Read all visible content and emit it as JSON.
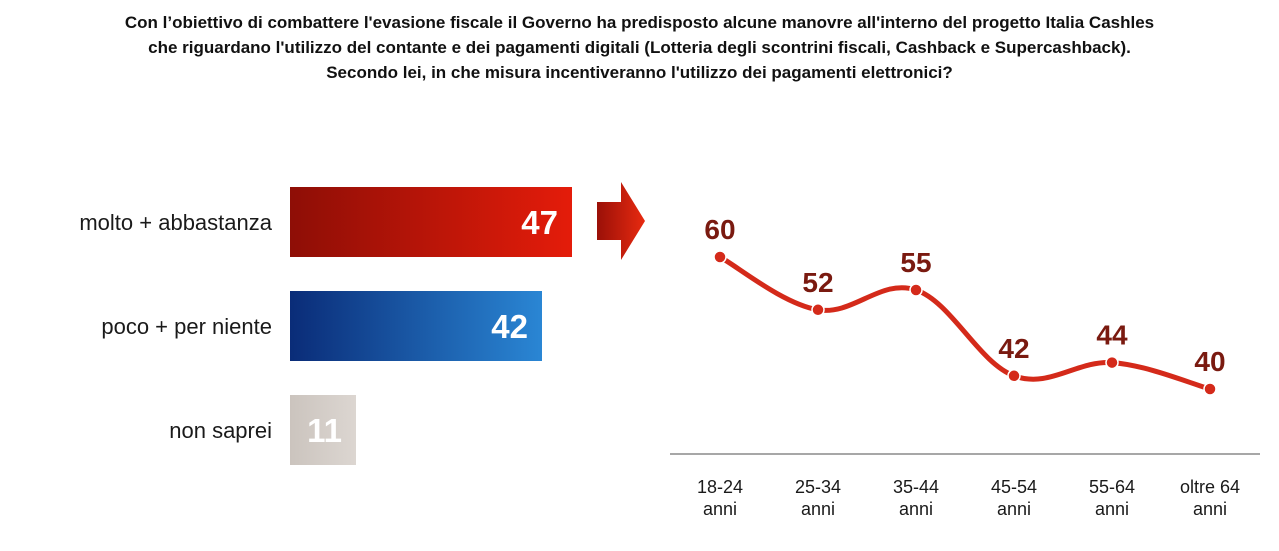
{
  "title": {
    "lines": [
      "Con l’obiettivo di combattere l'evasione fiscale il Governo ha predisposto alcune manovre all'interno del progetto Italia Cashles",
      "che riguardano l'utilizzo del contante e dei pagamenti digitali (Lotteria degli scontrini fiscali, Cashback e Supercashback).",
      "Secondo lei, in che misura incentiveranno l'utilizzo dei pagamenti elettronici?"
    ]
  },
  "colors": {
    "molto": "#c7140a",
    "poco": "#1a5aa8",
    "non_saprei": "#d2cbc5",
    "trend_line": "#d42a1a",
    "trend_value_text": "#7a1a10"
  },
  "chart_data": [
    {
      "type": "bar",
      "orientation": "horizontal",
      "categories": [
        "molto + abbastanza",
        "poco + per niente",
        "non saprei"
      ],
      "values": [
        47,
        42,
        11
      ],
      "xlim": [
        0,
        100
      ]
    },
    {
      "type": "line",
      "categories": [
        "18-24 anni",
        "25-34 anni",
        "35-44 anni",
        "45-54 anni",
        "55-64 anni",
        "oltre 64 anni"
      ],
      "category_lines": [
        [
          "18-24",
          "anni"
        ],
        [
          "25-34",
          "anni"
        ],
        [
          "35-44",
          "anni"
        ],
        [
          "45-54",
          "anni"
        ],
        [
          "55-64",
          "anni"
        ],
        [
          "oltre 64",
          "anni"
        ]
      ],
      "series": [
        {
          "values": [
            60,
            52,
            55,
            42,
            44,
            40
          ]
        }
      ]
    }
  ]
}
